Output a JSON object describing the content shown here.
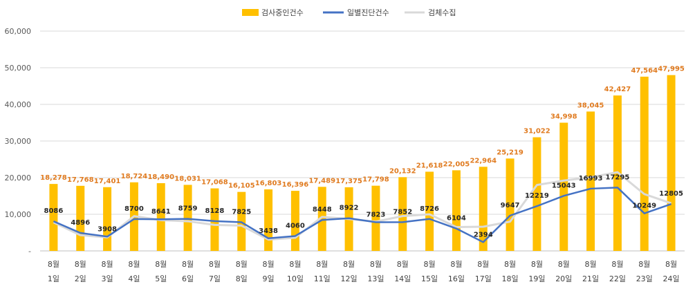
{
  "chart_data": {
    "type": "bar",
    "categories": [
      [
        "8월",
        "1일"
      ],
      [
        "8월",
        "2일"
      ],
      [
        "8월",
        "3일"
      ],
      [
        "8월",
        "4일"
      ],
      [
        "8월",
        "5일"
      ],
      [
        "8월",
        "6일"
      ],
      [
        "8월",
        "7일"
      ],
      [
        "8월",
        "8일"
      ],
      [
        "8월",
        "9일"
      ],
      [
        "8월",
        "10일"
      ],
      [
        "8월",
        "11일"
      ],
      [
        "8월",
        "12일"
      ],
      [
        "8월",
        "13일"
      ],
      [
        "8월",
        "14일"
      ],
      [
        "8월",
        "15일"
      ],
      [
        "8월",
        "16일"
      ],
      [
        "8월",
        "17일"
      ],
      [
        "8월",
        "18일"
      ],
      [
        "8월",
        "19일"
      ],
      [
        "8월",
        "20일"
      ],
      [
        "8월",
        "21일"
      ],
      [
        "8월",
        "22일"
      ],
      [
        "8월",
        "23일"
      ],
      [
        "8월",
        "24일"
      ]
    ],
    "series": [
      {
        "name": "검사중인건수",
        "type": "bar",
        "color": "#FFC000",
        "values": [
          18278,
          17768,
          17401,
          18724,
          18490,
          18031,
          17068,
          16105,
          16803,
          16396,
          17489,
          17375,
          17798,
          20132,
          21618,
          22005,
          22964,
          25219,
          31022,
          34998,
          38045,
          42427,
          47564,
          47995
        ],
        "labels": [
          "18,278",
          "17,768",
          "17,401",
          "18,724",
          "18,490",
          "18,031",
          "17,068",
          "16,105",
          "16,803",
          "16,396",
          "17,489",
          "17,375",
          "17,798",
          "20,132",
          "21,618",
          "22,005",
          "22,964",
          "25,219",
          "31,022",
          "34,998",
          "38,045",
          "42,427",
          "47,564",
          "47,995"
        ]
      },
      {
        "name": "일별진단건수",
        "type": "line",
        "color": "#4472C4",
        "values": [
          8086,
          4896,
          3908,
          8700,
          8641,
          8759,
          8128,
          7825,
          3438,
          4060,
          8448,
          8922,
          7823,
          7852,
          8726,
          6104,
          2394,
          9647,
          12219,
          15043,
          16993,
          17295,
          10249,
          12805
        ]
      },
      {
        "name": "검체수집",
        "type": "line",
        "color": "#D9D9D9",
        "values": [
          7800,
          4300,
          3700,
          9500,
          8400,
          8100,
          7100,
          6900,
          3100,
          3600,
          9300,
          8700,
          8000,
          9500,
          10000,
          6500,
          6600,
          8000,
          18000,
          19200,
          20100,
          21500,
          15500,
          13000
        ]
      }
    ],
    "y_ticks": [
      "-",
      "10,000",
      "20,000",
      "30,000",
      "40,000",
      "50,000",
      "60,000"
    ],
    "ylim": [
      0,
      60000
    ],
    "grid": true,
    "legend_position": "top"
  }
}
